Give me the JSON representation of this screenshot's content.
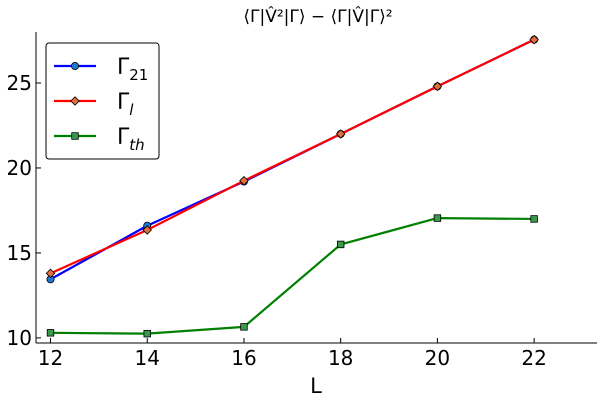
{
  "chart_data": {
    "type": "line",
    "title": "⟨Γ|V̂²|Γ⟩ − ⟨Γ|V̂|Γ⟩²",
    "xlabel": "L",
    "ylabel": "",
    "xlim": [
      11.7,
      23.3
    ],
    "ylim": [
      9.7,
      28.0
    ],
    "xticks": [
      12,
      14,
      16,
      18,
      20,
      22
    ],
    "yticks": [
      10,
      15,
      20,
      25
    ],
    "grid": false,
    "legend_position": "top-left",
    "x": [
      12,
      14,
      16,
      18,
      20,
      22
    ],
    "series": [
      {
        "name": "Γ",
        "sub": "21",
        "sub_italic": false,
        "color": "#0000ff",
        "marker": "circle",
        "marker_fill": "#1f77d4",
        "values": [
          13.45,
          16.6,
          19.2,
          22.0,
          24.8,
          27.55
        ]
      },
      {
        "name": "Γ",
        "sub": "l",
        "sub_italic": true,
        "color": "#ff0000",
        "marker": "diamond",
        "marker_fill": "#e26e3e",
        "values": [
          13.8,
          16.35,
          19.25,
          22.0,
          24.8,
          27.55
        ]
      },
      {
        "name": "Γ",
        "sub": "th",
        "sub_italic": true,
        "color": "#008000",
        "marker": "square",
        "marker_fill": "#3a9a4a",
        "values": [
          10.3,
          10.25,
          10.65,
          15.5,
          17.05,
          17.0
        ]
      }
    ]
  }
}
